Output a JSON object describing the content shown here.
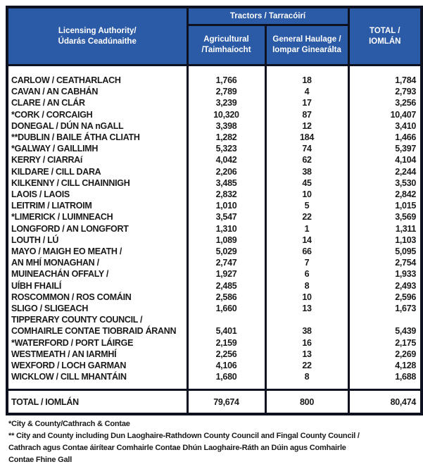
{
  "document": {
    "table": {
      "header": {
        "licensing_authority": [
          "Licensing Authority/",
          "Údarás Ceadúnaithe"
        ],
        "tractors_group": "Tractors / Tarracóirí",
        "col_agricultural": [
          "Agricultural",
          "/Taimhaíocht"
        ],
        "col_general_haulage": [
          "General Haulage /",
          "Iompar Ginearálta"
        ],
        "col_total": [
          "TOTAL /",
          "IOMLÁN"
        ]
      },
      "rows": [
        {
          "authority": "CARLOW / CEATHARLACH",
          "agricultural": "1,766",
          "general_haulage": "18",
          "total": "1,784"
        },
        {
          "authority": "CAVAN / AN CABHÁN",
          "agricultural": "2,789",
          "general_haulage": "4",
          "total": "2,793"
        },
        {
          "authority": "CLARE / AN CLÁR",
          "agricultural": "3,239",
          "general_haulage": "17",
          "total": "3,256"
        },
        {
          "authority": "*CORK / CORCAIGH",
          "agricultural": "10,320",
          "general_haulage": "87",
          "total": "10,407"
        },
        {
          "authority": "DONEGAL / DÚN NA nGALL",
          "agricultural": "3,398",
          "general_haulage": "12",
          "total": "3,410"
        },
        {
          "authority": "**DUBLIN / BAILE ÁTHA CLIATH",
          "agricultural": "1,282",
          "general_haulage": "184",
          "total": "1,466"
        },
        {
          "authority": "*GALWAY / GAILLIMH",
          "agricultural": "5,323",
          "general_haulage": "74",
          "total": "5,397"
        },
        {
          "authority": "KERRY / CIARRAí",
          "agricultural": "4,042",
          "general_haulage": "62",
          "total": "4,104"
        },
        {
          "authority": "KILDARE / CILL DARA",
          "agricultural": "2,206",
          "general_haulage": "38",
          "total": "2,244"
        },
        {
          "authority": "KILKENNY / CILL CHAINNIGH",
          "agricultural": "3,485",
          "general_haulage": "45",
          "total": "3,530"
        },
        {
          "authority": "LAOIS / LAOIS",
          "agricultural": "2,832",
          "general_haulage": "10",
          "total": "2,842"
        },
        {
          "authority": "LEITRIM / LIATROIM",
          "agricultural": "1,010",
          "general_haulage": "5",
          "total": "1,015"
        },
        {
          "authority": "*LIMERICK / LUIMNEACH",
          "agricultural": "3,547",
          "general_haulage": "22",
          "total": "3,569"
        },
        {
          "authority": "LONGFORD / AN LONGFORT",
          "agricultural": "1,310",
          "general_haulage": "1",
          "total": "1,311"
        },
        {
          "authority": "LOUTH / LÚ",
          "agricultural": "1,089",
          "general_haulage": "14",
          "total": "1,103"
        },
        {
          "authority": "MAYO / MAIGH EO MEATH /",
          "agricultural": "5,029",
          "general_haulage": "66",
          "total": "5,095"
        },
        {
          "authority": "AN MHÍ MONAGHAN /",
          "agricultural": "2,747",
          "general_haulage": "7",
          "total": "2,754"
        },
        {
          "authority": "MUINEACHÁN OFFALY /",
          "agricultural": "1,927",
          "general_haulage": "6",
          "total": "1,933"
        },
        {
          "authority": "UÍBH FHAILÍ",
          "agricultural": "2,485",
          "general_haulage": "8",
          "total": "2,493"
        },
        {
          "authority": "ROSCOMMON / ROS COMÁIN",
          "agricultural": "2,586",
          "general_haulage": "10",
          "total": "2,596"
        },
        {
          "authority": "SLIGO / SLIGEACH",
          "agricultural": "1,660",
          "general_haulage": "13",
          "total": "1,673"
        },
        {
          "authority": "TIPPERARY COUNTY COUNCIL /",
          "agricultural": "",
          "general_haulage": "",
          "total": ""
        },
        {
          "authority": "COMHAIRLE CONTAE TIOBRAID ÁRANN",
          "agricultural": "5,401",
          "general_haulage": "38",
          "total": "5,439"
        },
        {
          "authority": "*WATERFORD / PORT LÁIRGE",
          "agricultural": "2,159",
          "general_haulage": "16",
          "total": "2,175"
        },
        {
          "authority": "WESTMEATH / AN IARMHÍ",
          "agricultural": "2,256",
          "general_haulage": "13",
          "total": "2,269"
        },
        {
          "authority": "WEXFORD / LOCH GARMAN",
          "agricultural": "4,106",
          "general_haulage": "22",
          "total": "4,128"
        },
        {
          "authority": "WICKLOW / CILL MHANTÁIN",
          "agricultural": "1,680",
          "general_haulage": "8",
          "total": "1,688"
        }
      ],
      "total_row": {
        "authority": "TOTAL / IOMLÁN",
        "agricultural": "79,674",
        "general_haulage": "800",
        "total": "80,474"
      }
    },
    "footnotes": [
      "*City & County/Cathrach & Contae",
      "** City and County including Dun Laoghaire-Rathdown County Council and Fingal County Council /",
      "Cathrach agus Contae áirítear Comhairle Contae Dhún Laoghaire-Ráth an Dúin agus Comhairle",
      "Contae Fhine Gall"
    ]
  },
  "colors": {
    "header_blue": "#2B5AA6",
    "border_dark": "#0D1120",
    "header_text": "#FFFFFF",
    "body_text": "#1A1A1A"
  }
}
